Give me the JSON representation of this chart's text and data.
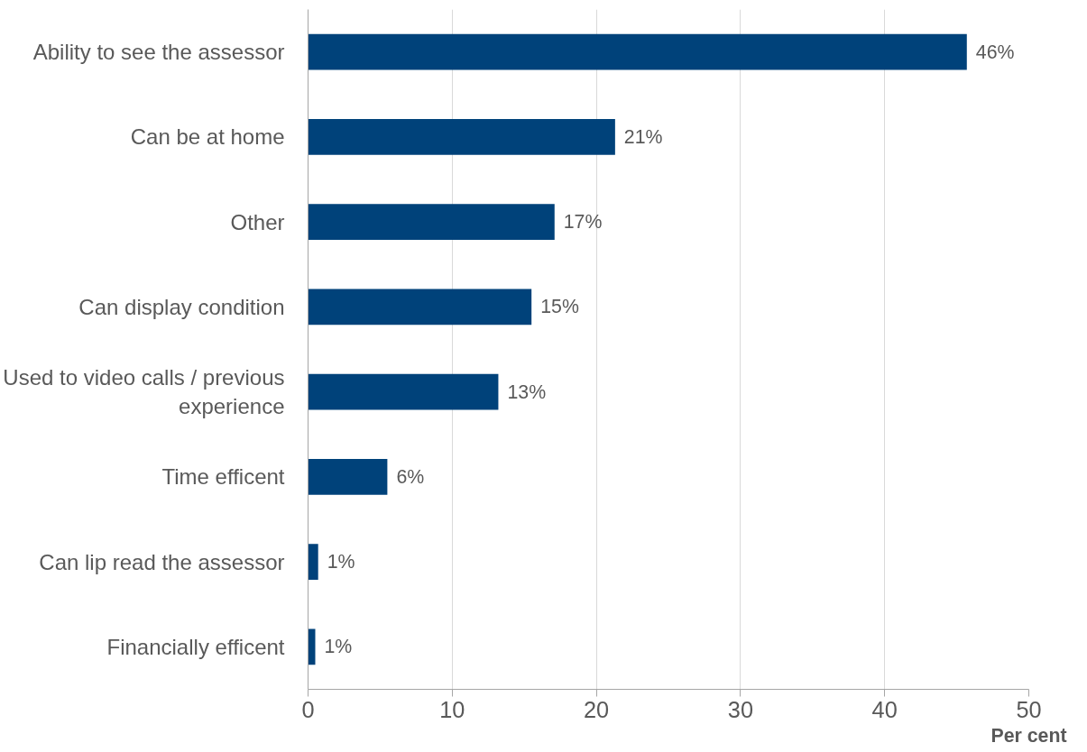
{
  "chart_data": {
    "type": "bar",
    "orientation": "horizontal",
    "xlabel": "Per cent",
    "categories": [
      "Ability to see the assessor",
      "Can be at home",
      "Other",
      "Can display condition",
      "Used to video calls / previous experience",
      "Time efficent",
      "Can lip read the assessor",
      "Financially efficent"
    ],
    "values": [
      45.7,
      21.3,
      17.1,
      15.5,
      13.2,
      5.5,
      0.7,
      0.5
    ],
    "value_labels": [
      "46%",
      "21%",
      "17%",
      "15%",
      "13%",
      "6%",
      "1%",
      "1%"
    ],
    "color": "#00427a",
    "xlim": [
      0,
      50
    ],
    "xticks": [
      0,
      10,
      20,
      30,
      40,
      50
    ],
    "grid": "x"
  }
}
